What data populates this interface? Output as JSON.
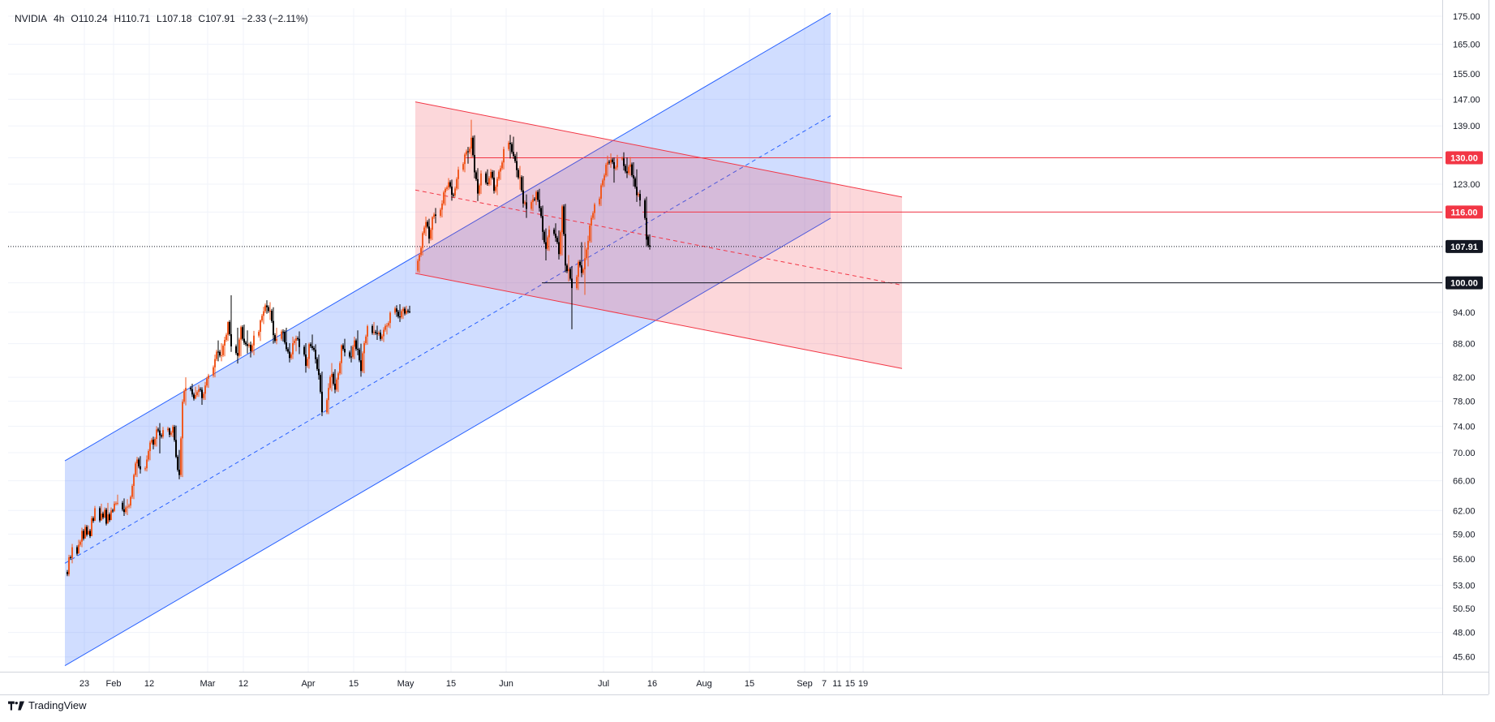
{
  "header": {
    "symbol": "NVIDIA",
    "interval": "4h",
    "open": "O110.24",
    "high": "H110.71",
    "low": "L107.18",
    "close": "C107.91",
    "change": "−2.33 (−2.11%)"
  },
  "watermark": {
    "brand": "TradingView"
  },
  "chart_data": {
    "type": "candlestick",
    "symbol": "NVIDIA",
    "interval": "4h",
    "last_price": 107.91,
    "price_scale": {
      "type": "log",
      "ticks": [
        "175.00",
        "165.00",
        "155.00",
        "147.00",
        "139.00",
        "130.00",
        "123.00",
        "116.00",
        "107.91",
        "100.00",
        "94.00",
        "88.00",
        "82.00",
        "78.00",
        "74.00",
        "70.00",
        "66.00",
        "62.00",
        "59.00",
        "56.00",
        "53.00",
        "50.50",
        "48.00",
        "45.60"
      ],
      "tick_values": [
        175,
        165,
        155,
        147,
        139,
        130,
        123,
        116,
        107.91,
        100,
        94,
        88,
        82,
        78,
        74,
        70,
        66,
        62,
        59,
        56,
        53,
        50.5,
        48,
        45.6
      ],
      "badges": [
        {
          "label": "130.00",
          "value": 130,
          "color": "#f23645"
        },
        {
          "label": "116.00",
          "value": 116,
          "color": "#f23645"
        },
        {
          "label": "107.91",
          "value": 107.91,
          "color": "#131722"
        },
        {
          "label": "100.00",
          "value": 100,
          "color": "#131722"
        }
      ]
    },
    "time_ticks": [
      "23",
      "Feb",
      "12",
      "Mar",
      "12",
      "Apr",
      "15",
      "May",
      "15",
      "Jun",
      "Jul",
      "16",
      "Aug",
      "15",
      "Sep",
      "7",
      "11",
      "15",
      "19"
    ],
    "time_tick_days": [
      -9,
      0,
      11,
      29,
      40,
      60,
      74,
      90,
      104,
      121,
      151,
      166,
      182,
      196,
      213,
      219,
      223,
      227,
      231
    ],
    "candles_daily": [
      [
        -14,
        54.5,
        56.5,
        54.0,
        56.2
      ],
      [
        -13,
        56.2,
        57.8,
        55.5,
        57.4
      ],
      [
        -11,
        57.4,
        58.3,
        56.9,
        57.7
      ],
      [
        -10,
        57.7,
        59.8,
        57.4,
        59.4
      ],
      [
        -9,
        59.4,
        60.2,
        58.7,
        59.9
      ],
      [
        -8,
        59.9,
        60.1,
        59.0,
        59.4
      ],
      [
        -7,
        59.4,
        61.3,
        59.3,
        61.0
      ],
      [
        -6,
        61.0,
        62.6,
        60.8,
        62.3
      ],
      [
        -4,
        62.3,
        62.9,
        61.3,
        61.6
      ],
      [
        -3,
        61.6,
        62.4,
        61.0,
        62.1
      ],
      [
        -2,
        62.1,
        63.0,
        61.4,
        61.5
      ],
      [
        -1,
        61.5,
        62.4,
        61.0,
        62.0
      ],
      [
        0,
        62.0,
        63.2,
        61.8,
        62.9
      ],
      [
        1,
        62.9,
        64.1,
        62.7,
        63.0
      ],
      [
        3,
        63.0,
        63.6,
        61.3,
        61.8
      ],
      [
        4,
        61.8,
        63.5,
        61.4,
        62.5
      ],
      [
        5,
        62.5,
        64.0,
        62.3,
        63.8
      ],
      [
        6,
        63.8,
        67.0,
        63.5,
        66.8
      ],
      [
        7,
        66.8,
        69.4,
        66.5,
        69.0
      ],
      [
        8,
        69.0,
        69.5,
        67.0,
        67.6
      ],
      [
        10,
        67.6,
        69.6,
        67.3,
        69.0
      ],
      [
        11,
        69.0,
        71.8,
        68.9,
        71.5
      ],
      [
        12,
        71.5,
        72.4,
        70.5,
        71.2
      ],
      [
        13,
        71.2,
        74.0,
        70.9,
        73.5
      ],
      [
        14,
        73.5,
        74.5,
        69.9,
        72.6
      ],
      [
        15,
        72.6,
        73.9,
        72.1,
        73.4
      ],
      [
        17,
        73.4,
        73.8,
        72.3,
        72.7
      ],
      [
        18,
        72.7,
        74.2,
        72.3,
        73.9
      ],
      [
        19,
        73.9,
        74.1,
        69.2,
        69.4
      ],
      [
        20,
        69.4,
        70.4,
        66.2,
        66.8
      ],
      [
        21,
        66.8,
        78.3,
        66.5,
        77.9
      ],
      [
        22,
        77.9,
        82.0,
        77.3,
        80.2
      ],
      [
        24,
        80.2,
        80.9,
        78.7,
        79.1
      ],
      [
        25,
        79.1,
        80.4,
        78.3,
        79.0
      ],
      [
        26,
        79.0,
        80.7,
        78.7,
        80.0
      ],
      [
        27,
        80.0,
        80.3,
        77.4,
        78.5
      ],
      [
        28,
        78.5,
        81.2,
        78.2,
        80.6
      ],
      [
        29,
        80.6,
        82.6,
        80.2,
        82.3
      ],
      [
        31,
        82.3,
        86.0,
        82.0,
        85.2
      ],
      [
        32,
        85.2,
        88.6,
        84.8,
        86.5
      ],
      [
        33,
        86.5,
        88.1,
        84.8,
        85.9
      ],
      [
        34,
        85.9,
        89.3,
        85.7,
        88.7
      ],
      [
        35,
        88.7,
        92.2,
        88.5,
        92.1
      ],
      [
        36,
        92.1,
        97.4,
        86.5,
        87.5
      ],
      [
        38,
        87.5,
        91.0,
        84.4,
        85.8
      ],
      [
        39,
        85.8,
        91.4,
        85.7,
        91.1
      ],
      [
        40,
        91.1,
        91.6,
        87.8,
        88.2
      ],
      [
        41,
        88.2,
        90.5,
        86.2,
        87.6
      ],
      [
        42,
        87.6,
        88.4,
        85.5,
        86.6
      ],
      [
        43,
        86.6,
        90.4,
        85.9,
        89.5
      ],
      [
        45,
        89.5,
        92.6,
        88.5,
        92.4
      ],
      [
        46,
        92.4,
        95.1,
        91.7,
        94.2
      ],
      [
        47,
        94.2,
        96.4,
        93.7,
        95.0
      ],
      [
        48,
        95.0,
        96.0,
        92.5,
        94.3
      ],
      [
        49,
        94.3,
        95.0,
        88.0,
        89.6
      ],
      [
        50,
        89.6,
        91.0,
        87.9,
        88.9
      ],
      [
        52,
        88.9,
        90.7,
        88.4,
        90.2
      ],
      [
        53,
        90.2,
        91.0,
        86.6,
        87.0
      ],
      [
        54,
        87.0,
        88.1,
        84.6,
        85.4
      ],
      [
        55,
        85.4,
        89.3,
        85.2,
        88.1
      ],
      [
        56,
        88.1,
        89.5,
        86.6,
        89.0
      ],
      [
        57,
        89.0,
        90.3,
        86.1,
        87.4
      ],
      [
        59,
        87.4,
        88.1,
        82.8,
        84.0
      ],
      [
        60,
        84.0,
        88.2,
        83.5,
        87.9
      ],
      [
        61,
        87.9,
        89.7,
        86.8,
        87.2
      ],
      [
        62,
        87.2,
        87.9,
        84.4,
        85.2
      ],
      [
        63,
        85.2,
        86.0,
        81.6,
        82.4
      ],
      [
        64,
        82.4,
        83.0,
        75.6,
        76.2
      ],
      [
        66,
        76.2,
        81.0,
        75.9,
        80.2
      ],
      [
        67,
        80.2,
        84.5,
        79.6,
        82.6
      ],
      [
        68,
        82.6,
        83.4,
        79.3,
        79.9
      ],
      [
        69,
        79.9,
        83.0,
        79.5,
        82.7
      ],
      [
        70,
        82.7,
        87.9,
        82.5,
        87.7
      ],
      [
        71,
        87.7,
        88.9,
        85.7,
        86.4
      ],
      [
        73,
        86.4,
        87.6,
        84.6,
        85.6
      ],
      [
        74,
        85.6,
        89.3,
        85.2,
        88.6
      ],
      [
        75,
        88.6,
        90.5,
        85.9,
        86.9
      ],
      [
        76,
        86.9,
        88.0,
        82.1,
        83.1
      ],
      [
        77,
        83.1,
        88.5,
        82.7,
        88.1
      ],
      [
        78,
        88.1,
        91.6,
        87.8,
        91.3
      ],
      [
        80,
        91.3,
        92.1,
        89.6,
        90.2
      ],
      [
        81,
        90.2,
        91.4,
        88.7,
        89.8
      ],
      [
        82,
        89.8,
        90.6,
        88.5,
        88.9
      ],
      [
        83,
        88.9,
        91.1,
        88.3,
        90.6
      ],
      [
        84,
        90.6,
        91.9,
        89.7,
        91.4
      ],
      [
        85,
        91.4,
        94.2,
        90.9,
        93.9
      ],
      [
        87,
        93.9,
        95.4,
        93.1,
        94.1
      ],
      [
        88,
        94.1,
        95.6,
        92.1,
        93.0
      ],
      [
        89,
        93.0,
        95.1,
        92.7,
        94.7
      ],
      [
        90,
        94.7,
        95.3,
        93.5,
        94.3
      ],
      [
        91,
        94.3,
        95.3,
        93.8,
        94.0
      ],
      [
        94,
        102.6,
        106.3,
        102.1,
        106.0
      ],
      [
        95,
        106.0,
        111.4,
        105.9,
        111.0
      ],
      [
        96,
        111.0,
        114.9,
        110.3,
        113.6
      ],
      [
        97,
        113.6,
        114.4,
        108.6,
        109.7
      ],
      [
        98,
        109.7,
        115.0,
        109.4,
        114.8
      ],
      [
        99,
        114.8,
        117.0,
        113.3,
        115.1
      ],
      [
        101,
        115.1,
        118.9,
        114.7,
        118.1
      ],
      [
        102,
        118.1,
        122.2,
        117.6,
        121.8
      ],
      [
        103,
        121.8,
        124.6,
        121.5,
        123.5
      ],
      [
        104,
        123.5,
        124.2,
        118.8,
        120.3
      ],
      [
        105,
        120.3,
        122.4,
        119.6,
        121.9
      ],
      [
        106,
        121.9,
        127.6,
        121.7,
        126.8
      ],
      [
        108,
        126.8,
        131.4,
        126.1,
        130.9
      ],
      [
        109,
        130.9,
        133.0,
        128.4,
        131.6
      ],
      [
        110,
        131.6,
        140.8,
        130.0,
        135.6
      ],
      [
        111,
        135.6,
        136.3,
        124.5,
        126.1
      ],
      [
        112,
        126.1,
        127.2,
        118.7,
        120.6
      ],
      [
        113,
        120.6,
        126.6,
        120.5,
        125.8
      ],
      [
        115,
        125.8,
        126.9,
        122.6,
        123.0
      ],
      [
        116,
        123.0,
        127.0,
        122.7,
        126.2
      ],
      [
        117,
        126.2,
        126.6,
        120.6,
        121.3
      ],
      [
        118,
        121.3,
        124.9,
        120.2,
        124.4
      ],
      [
        119,
        124.4,
        127.9,
        124.1,
        127.2
      ],
      [
        120,
        127.2,
        133.1,
        126.9,
        132.4
      ],
      [
        122,
        132.4,
        136.4,
        129.8,
        133.8
      ],
      [
        123,
        133.8,
        135.9,
        129.7,
        130.5
      ],
      [
        124,
        130.5,
        131.6,
        124.8,
        126.7
      ],
      [
        125,
        126.7,
        127.8,
        121.6,
        124.8
      ],
      [
        126,
        124.8,
        125.1,
        117.1,
        118.1
      ],
      [
        127,
        118.1,
        120.4,
        114.6,
        116.8
      ],
      [
        129,
        116.8,
        120.3,
        116.2,
        119.2
      ],
      [
        130,
        119.2,
        121.4,
        117.7,
        121.0
      ],
      [
        131,
        121.0,
        121.8,
        116.1,
        117.0
      ],
      [
        132,
        117.0,
        117.6,
        109.4,
        111.3
      ],
      [
        133,
        111.3,
        112.1,
        104.8,
        107.4
      ],
      [
        134,
        107.4,
        112.7,
        106.9,
        111.8
      ],
      [
        136,
        111.8,
        113.3,
        109.0,
        109.9
      ],
      [
        137,
        109.9,
        111.6,
        105.0,
        106.2
      ],
      [
        138,
        106.2,
        117.8,
        105.9,
        117.4
      ],
      [
        139,
        117.4,
        118.0,
        102.2,
        103.7
      ],
      [
        140,
        103.7,
        106.0,
        100.3,
        102.9
      ],
      [
        141,
        102.9,
        103.6,
        90.7,
        98.9
      ],
      [
        143,
        98.9,
        104.9,
        98.5,
        104.5
      ],
      [
        144,
        104.5,
        108.9,
        101.2,
        102.1
      ],
      [
        145,
        102.1,
        108.9,
        97.5,
        105.3
      ],
      [
        146,
        105.3,
        110.4,
        103.5,
        109.2
      ],
      [
        147,
        109.2,
        115.2,
        108.8,
        114.6
      ],
      [
        148,
        114.6,
        118.3,
        114.2,
        117.9
      ],
      [
        150,
        117.9,
        123.2,
        117.5,
        122.7
      ],
      [
        151,
        122.7,
        125.8,
        122.3,
        125.3
      ],
      [
        152,
        125.3,
        130.6,
        125.0,
        128.9
      ],
      [
        153,
        128.9,
        131.2,
        127.3,
        129.5
      ],
      [
        154,
        129.5,
        130.1,
        123.4,
        127.1
      ],
      [
        155,
        127.1,
        130.8,
        126.7,
        129.8
      ],
      [
        157,
        129.8,
        131.5,
        126.6,
        127.8
      ],
      [
        158,
        127.8,
        130.1,
        124.6,
        125.9
      ],
      [
        159,
        125.9,
        130.2,
        125.2,
        128.2
      ],
      [
        160,
        128.2,
        128.8,
        122.4,
        124.5
      ],
      [
        161,
        124.5,
        126.9,
        118.5,
        120.2
      ],
      [
        162,
        120.2,
        121.5,
        117.4,
        118.9
      ],
      [
        164,
        118.9,
        119.8,
        108.0,
        109.5
      ],
      [
        165,
        110.2,
        110.7,
        107.2,
        107.9
      ]
    ],
    "blue_channel": {
      "start": {
        "day": -15,
        "center": 55.5
      },
      "end": {
        "day": 221,
        "center": 142.0
      },
      "upper_offset": 0.215,
      "lower_offset": -0.215,
      "color": "#2962ff"
    },
    "red_channel": {
      "start": {
        "day": 93,
        "center": 121.5
      },
      "end": {
        "day": 243,
        "center": 99.5
      },
      "upper_offset": 0.185,
      "lower_offset": -0.175,
      "color": "#f23645"
    },
    "levels": [
      {
        "value": 130,
        "from_day": 108,
        "color": "#f23645"
      },
      {
        "value": 116,
        "from_day": 163,
        "color": "#f23645"
      },
      {
        "value": 100,
        "from_day": 132,
        "color": "#131722"
      }
    ],
    "last_price_line": {
      "value": 107.91,
      "style": "dotted"
    }
  }
}
